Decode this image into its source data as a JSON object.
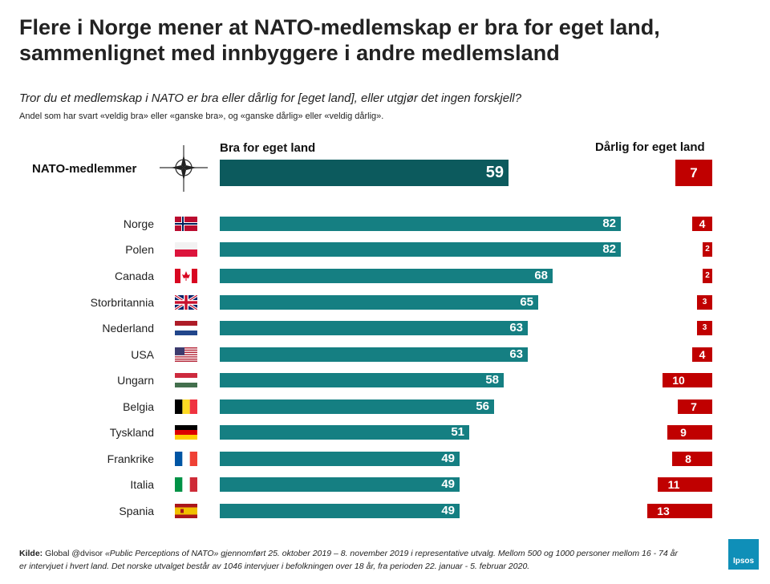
{
  "title": {
    "line1": "Flere i Norge mener at NATO-medlemskap er bra for eget land,",
    "line2": "sammenlignet med innbyggere i andre medlemsland"
  },
  "question": "Tror du et medlemskap i NATO er bra eller dårlig for [eget land], eller utgjør det ingen forskjell?",
  "note": "Andel som har svart «veldig bra» eller «ganske bra», og «ganske dårlig» eller «veldig dårlig».",
  "colors": {
    "good": "#157f82",
    "good_nato": "#0c5a5d",
    "bad": "#c00000"
  },
  "chart_data": {
    "type": "bar",
    "orientation": "horizontal",
    "series": [
      {
        "name": "Bra for eget land",
        "values": [
          59,
          82,
          82,
          68,
          65,
          63,
          63,
          58,
          56,
          51,
          49,
          49,
          49
        ]
      },
      {
        "name": "Dårlig for eget land",
        "values": [
          7,
          4,
          2,
          2,
          3,
          3,
          4,
          10,
          7,
          9,
          8,
          11,
          13
        ]
      }
    ],
    "categories": [
      "NATO-medlemmer",
      "Norge",
      "Polen",
      "Canada",
      "Storbritannia",
      "Nederland",
      "USA",
      "Ungarn",
      "Belgia",
      "Tyskland",
      "Frankrike",
      "Italia",
      "Spania"
    ],
    "flags": [
      "nato-compass",
      "flag-norway",
      "flag-poland",
      "flag-canada",
      "flag-uk",
      "flag-netherlands",
      "flag-usa",
      "flag-hungary",
      "flag-belgium",
      "flag-germany",
      "flag-france",
      "flag-italy",
      "flag-spain"
    ],
    "unit": "%",
    "xlim": [
      0,
      100
    ]
  },
  "source": {
    "label": "Kilde:",
    "text1": "Global @dvisor ",
    "study": "«Public Perceptions of NATO» gjennomført 25. oktober 2019 – 8. november 2019 i representative utvalg. Mellom 500 og 1000 personer mellom 16 - 74 år er intervjuet i hvert land. Det norske utvalget består av 1046 intervjuer i befolkningen over 18 år, fra perioden 22. januar - 5. februar 2020."
  },
  "logo": "Ipsos"
}
